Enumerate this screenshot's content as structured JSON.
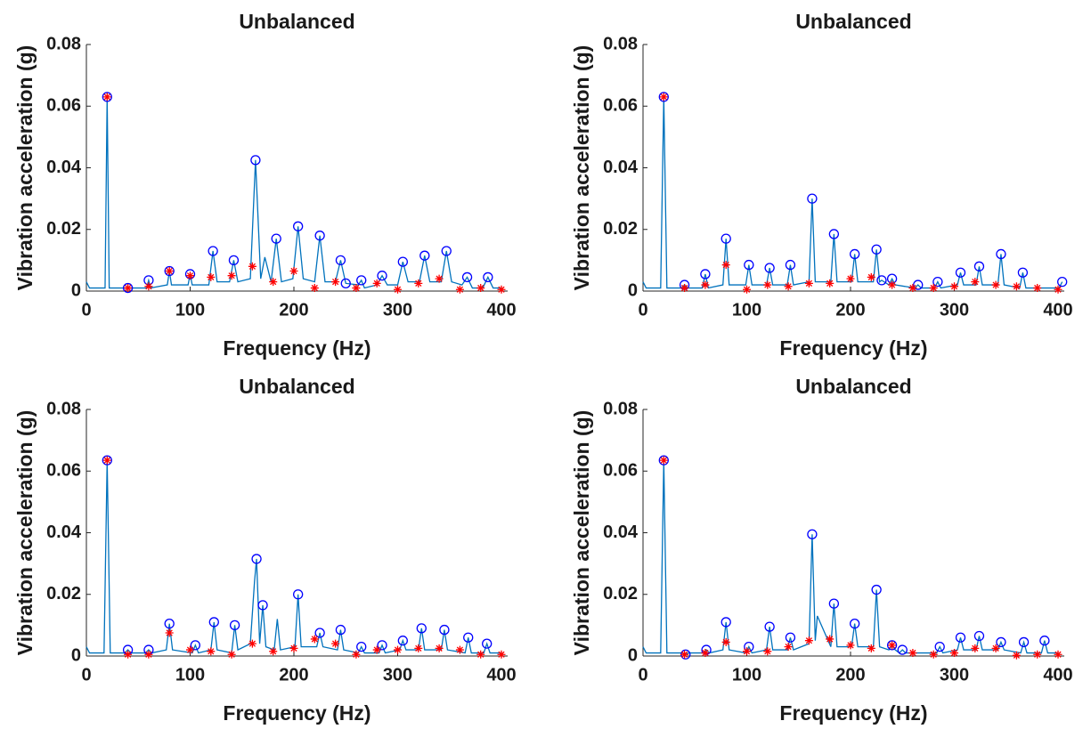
{
  "chart_data": [
    {
      "type": "line",
      "title": "Unbalanced",
      "x_label": "Frequency (Hz)",
      "y_label": "Vibration acceleration (g)",
      "xlim": [
        0,
        406
      ],
      "ylim": [
        0,
        0.08
      ],
      "xticks": [
        0,
        100,
        200,
        300,
        400
      ],
      "yticks": [
        0,
        0.02,
        0.04,
        0.06,
        0.08
      ],
      "series": [
        {
          "mode": "line",
          "color": "#0072bd",
          "x": [
            0,
            3,
            18,
            20,
            22,
            38,
            40,
            58,
            60,
            62,
            78,
            80,
            82,
            98,
            100,
            102,
            118,
            122,
            126,
            138,
            142,
            146,
            158,
            163,
            168,
            172,
            178,
            183,
            188,
            199,
            204,
            209,
            220,
            225,
            230,
            240,
            245,
            250,
            262,
            265,
            268,
            280,
            285,
            290,
            300,
            305,
            310,
            321,
            326,
            331,
            342,
            347,
            352,
            362,
            367,
            372,
            382,
            387,
            392,
            400
          ],
          "values": [
            0.003,
            0.001,
            0.001,
            0.063,
            0.001,
            0.001,
            0.001,
            0.001,
            0.0035,
            0.001,
            0.002,
            0.0065,
            0.002,
            0.002,
            0.0055,
            0.002,
            0.002,
            0.013,
            0.003,
            0.003,
            0.01,
            0.003,
            0.004,
            0.0425,
            0.004,
            0.011,
            0.003,
            0.017,
            0.003,
            0.004,
            0.021,
            0.004,
            0.003,
            0.018,
            0.003,
            0.003,
            0.01,
            0.0025,
            0.002,
            0.0035,
            0.001,
            0.002,
            0.005,
            0.002,
            0.002,
            0.0095,
            0.003,
            0.003,
            0.0115,
            0.003,
            0.003,
            0.013,
            0.003,
            0.002,
            0.0045,
            0.001,
            0.001,
            0.0045,
            0.001,
            0.001
          ]
        },
        {
          "mode": "markers",
          "marker": "circle",
          "color": "#0000ff",
          "x": [
            20,
            40,
            60,
            80,
            100,
            122,
            142,
            163,
            183,
            204,
            225,
            245,
            250,
            265,
            285,
            305,
            326,
            347,
            367,
            387
          ],
          "values": [
            0.063,
            0.001,
            0.0035,
            0.0065,
            0.0055,
            0.013,
            0.01,
            0.0425,
            0.017,
            0.021,
            0.018,
            0.01,
            0.0025,
            0.0035,
            0.005,
            0.0095,
            0.0115,
            0.013,
            0.0045,
            0.0045
          ]
        },
        {
          "mode": "markers",
          "marker": "asterisk",
          "color": "#ff0000",
          "x": [
            20,
            40,
            60,
            80,
            100,
            120,
            140,
            160,
            180,
            200,
            220,
            240,
            260,
            280,
            300,
            320,
            340,
            360,
            380,
            400
          ],
          "values": [
            0.063,
            0.001,
            0.0015,
            0.0065,
            0.005,
            0.0045,
            0.005,
            0.008,
            0.003,
            0.0065,
            0.001,
            0.003,
            0.001,
            0.0025,
            0.0005,
            0.0025,
            0.004,
            0.0005,
            0.001,
            0.0005
          ]
        }
      ]
    },
    {
      "type": "line",
      "title": "Unbalanced",
      "x_label": "Frequency (Hz)",
      "y_label": "Vibration acceleration (g)",
      "xlim": [
        0,
        406
      ],
      "ylim": [
        0,
        0.08
      ],
      "xticks": [
        0,
        100,
        200,
        300,
        400
      ],
      "yticks": [
        0,
        0.02,
        0.04,
        0.06,
        0.08
      ],
      "series": [
        {
          "mode": "line",
          "color": "#0072bd",
          "x": [
            0,
            3,
            17,
            20,
            23,
            37,
            40,
            43,
            57,
            60,
            63,
            77,
            80,
            83,
            99,
            102,
            105,
            119,
            122,
            125,
            139,
            142,
            145,
            160,
            163,
            166,
            181,
            184,
            187,
            201,
            204,
            207,
            222,
            225,
            228,
            230,
            237,
            240,
            243,
            262,
            265,
            268,
            281,
            284,
            287,
            303,
            306,
            309,
            321,
            324,
            327,
            342,
            345,
            348,
            363,
            366,
            369,
            401,
            404
          ],
          "values": [
            0.003,
            0.001,
            0.001,
            0.063,
            0.001,
            0.001,
            0.002,
            0.001,
            0.001,
            0.0055,
            0.001,
            0.002,
            0.017,
            0.002,
            0.002,
            0.0085,
            0.002,
            0.002,
            0.0075,
            0.002,
            0.002,
            0.0085,
            0.002,
            0.003,
            0.03,
            0.003,
            0.003,
            0.0185,
            0.003,
            0.003,
            0.012,
            0.003,
            0.003,
            0.0135,
            0.003,
            0.0035,
            0.002,
            0.004,
            0.002,
            0.001,
            0.002,
            0.001,
            0.001,
            0.003,
            0.001,
            0.002,
            0.006,
            0.002,
            0.002,
            0.008,
            0.002,
            0.002,
            0.012,
            0.002,
            0.001,
            0.006,
            0.001,
            0.001,
            0.003
          ]
        },
        {
          "mode": "markers",
          "marker": "circle",
          "color": "#0000ff",
          "x": [
            20,
            40,
            60,
            80,
            102,
            122,
            142,
            163,
            184,
            204,
            225,
            230,
            240,
            265,
            284,
            306,
            324,
            345,
            366,
            404
          ],
          "values": [
            0.063,
            0.002,
            0.0055,
            0.017,
            0.0085,
            0.0075,
            0.0085,
            0.03,
            0.0185,
            0.012,
            0.0135,
            0.0035,
            0.004,
            0.002,
            0.003,
            0.006,
            0.008,
            0.012,
            0.006,
            0.003
          ]
        },
        {
          "mode": "markers",
          "marker": "asterisk",
          "color": "#ff0000",
          "x": [
            20,
            40,
            60,
            80,
            100,
            120,
            140,
            160,
            180,
            200,
            220,
            240,
            260,
            280,
            300,
            320,
            340,
            360,
            380,
            400
          ],
          "values": [
            0.063,
            0.001,
            0.002,
            0.0085,
            0.0005,
            0.002,
            0.0015,
            0.0025,
            0.0025,
            0.004,
            0.0045,
            0.002,
            0.001,
            0.001,
            0.0015,
            0.003,
            0.002,
            0.0015,
            0.001,
            0.0005
          ]
        }
      ]
    },
    {
      "type": "line",
      "title": "Unbalanced",
      "x_label": "Frequency (Hz)",
      "y_label": "Vibration acceleration (g)",
      "xlim": [
        0,
        406
      ],
      "ylim": [
        0,
        0.08
      ],
      "xticks": [
        0,
        100,
        200,
        300,
        400
      ],
      "yticks": [
        0,
        0.02,
        0.04,
        0.06,
        0.08
      ],
      "series": [
        {
          "mode": "line",
          "color": "#0072bd",
          "x": [
            0,
            3,
            17,
            20,
            23,
            37,
            40,
            43,
            57,
            60,
            63,
            77,
            80,
            83,
            102,
            105,
            108,
            120,
            123,
            126,
            140,
            143,
            146,
            158,
            162,
            164,
            167,
            170,
            173,
            181,
            184,
            187,
            201,
            204,
            207,
            222,
            225,
            228,
            242,
            245,
            248,
            262,
            265,
            268,
            282,
            285,
            288,
            302,
            305,
            308,
            320,
            323,
            326,
            342,
            345,
            348,
            365,
            368,
            371,
            383,
            386,
            389,
            400
          ],
          "values": [
            0.003,
            0.001,
            0.001,
            0.0635,
            0.001,
            0.001,
            0.002,
            0.001,
            0.001,
            0.002,
            0.001,
            0.002,
            0.0105,
            0.002,
            0.001,
            0.0035,
            0.001,
            0.002,
            0.011,
            0.002,
            0.001,
            0.01,
            0.002,
            0.004,
            0.024,
            0.0315,
            0.004,
            0.0165,
            0.003,
            0.002,
            0.012,
            0.002,
            0.003,
            0.02,
            0.003,
            0.003,
            0.0075,
            0.003,
            0.002,
            0.0085,
            0.002,
            0.001,
            0.003,
            0.001,
            0.001,
            0.0035,
            0.001,
            0.002,
            0.005,
            0.002,
            0.002,
            0.009,
            0.002,
            0.002,
            0.0085,
            0.002,
            0.001,
            0.006,
            0.001,
            0.001,
            0.004,
            0.001,
            0.001
          ]
        },
        {
          "mode": "markers",
          "marker": "circle",
          "color": "#0000ff",
          "x": [
            20,
            40,
            60,
            80,
            105,
            123,
            143,
            164,
            170,
            204,
            225,
            245,
            265,
            285,
            305,
            323,
            345,
            368,
            386
          ],
          "values": [
            0.0635,
            0.002,
            0.002,
            0.0105,
            0.0035,
            0.011,
            0.01,
            0.0315,
            0.0165,
            0.02,
            0.0075,
            0.0085,
            0.003,
            0.0035,
            0.005,
            0.009,
            0.0085,
            0.006,
            0.004
          ]
        },
        {
          "mode": "markers",
          "marker": "asterisk",
          "color": "#ff0000",
          "x": [
            20,
            40,
            60,
            80,
            100,
            120,
            140,
            160,
            180,
            200,
            220,
            240,
            260,
            280,
            300,
            320,
            340,
            360,
            380,
            400
          ],
          "values": [
            0.0635,
            0.0005,
            0.0005,
            0.0075,
            0.002,
            0.0015,
            0.0005,
            0.004,
            0.0015,
            0.0025,
            0.0055,
            0.004,
            0.0005,
            0.002,
            0.002,
            0.0025,
            0.0025,
            0.002,
            0.0005,
            0.0005
          ]
        }
      ]
    },
    {
      "type": "line",
      "title": "Unbalanced",
      "x_label": "Frequency (Hz)",
      "y_label": "Vibration acceleration (g)",
      "xlim": [
        0,
        406
      ],
      "ylim": [
        0,
        0.08
      ],
      "xticks": [
        0,
        100,
        200,
        300,
        400
      ],
      "yticks": [
        0,
        0.02,
        0.04,
        0.06,
        0.08
      ],
      "series": [
        {
          "mode": "line",
          "color": "#0072bd",
          "x": [
            0,
            3,
            17,
            20,
            23,
            38,
            41,
            44,
            58,
            61,
            64,
            77,
            80,
            83,
            99,
            102,
            105,
            119,
            122,
            125,
            139,
            142,
            145,
            160,
            163,
            166,
            168,
            181,
            184,
            187,
            201,
            204,
            207,
            222,
            225,
            228,
            237,
            240,
            243,
            247,
            250,
            253,
            283,
            286,
            289,
            303,
            306,
            309,
            321,
            324,
            327,
            342,
            345,
            348,
            364,
            367,
            370,
            384,
            387,
            390,
            400
          ],
          "values": [
            0.003,
            0.001,
            0.001,
            0.0635,
            0.001,
            0.001,
            0.0005,
            0.001,
            0.001,
            0.002,
            0.001,
            0.002,
            0.011,
            0.002,
            0.001,
            0.003,
            0.001,
            0.002,
            0.0095,
            0.002,
            0.002,
            0.006,
            0.002,
            0.004,
            0.0395,
            0.005,
            0.013,
            0.003,
            0.017,
            0.003,
            0.003,
            0.0105,
            0.003,
            0.003,
            0.0215,
            0.003,
            0.002,
            0.0035,
            0.002,
            0.001,
            0.002,
            0.001,
            0.001,
            0.003,
            0.001,
            0.002,
            0.006,
            0.002,
            0.002,
            0.0065,
            0.002,
            0.002,
            0.0045,
            0.002,
            0.001,
            0.0045,
            0.001,
            0.001,
            0.005,
            0.001,
            0.001
          ]
        },
        {
          "mode": "markers",
          "marker": "circle",
          "color": "#0000ff",
          "x": [
            20,
            41,
            61,
            80,
            102,
            122,
            142,
            163,
            184,
            204,
            225,
            240,
            250,
            286,
            306,
            324,
            345,
            367,
            387
          ],
          "values": [
            0.0635,
            0.0005,
            0.002,
            0.011,
            0.003,
            0.0095,
            0.006,
            0.0395,
            0.017,
            0.0105,
            0.0215,
            0.0035,
            0.002,
            0.003,
            0.006,
            0.0065,
            0.0045,
            0.0045,
            0.005
          ]
        },
        {
          "mode": "markers",
          "marker": "asterisk",
          "color": "#ff0000",
          "x": [
            20,
            40,
            60,
            80,
            100,
            120,
            140,
            160,
            180,
            200,
            220,
            240,
            260,
            280,
            300,
            320,
            340,
            360,
            380,
            400
          ],
          "values": [
            0.0635,
            0.0005,
            0.001,
            0.0045,
            0.0015,
            0.0015,
            0.003,
            0.005,
            0.0055,
            0.0035,
            0.0025,
            0.0035,
            0.001,
            0.0005,
            0.001,
            0.0025,
            0.0025,
            0.0002,
            0.0005,
            0.0005
          ]
        }
      ]
    }
  ]
}
